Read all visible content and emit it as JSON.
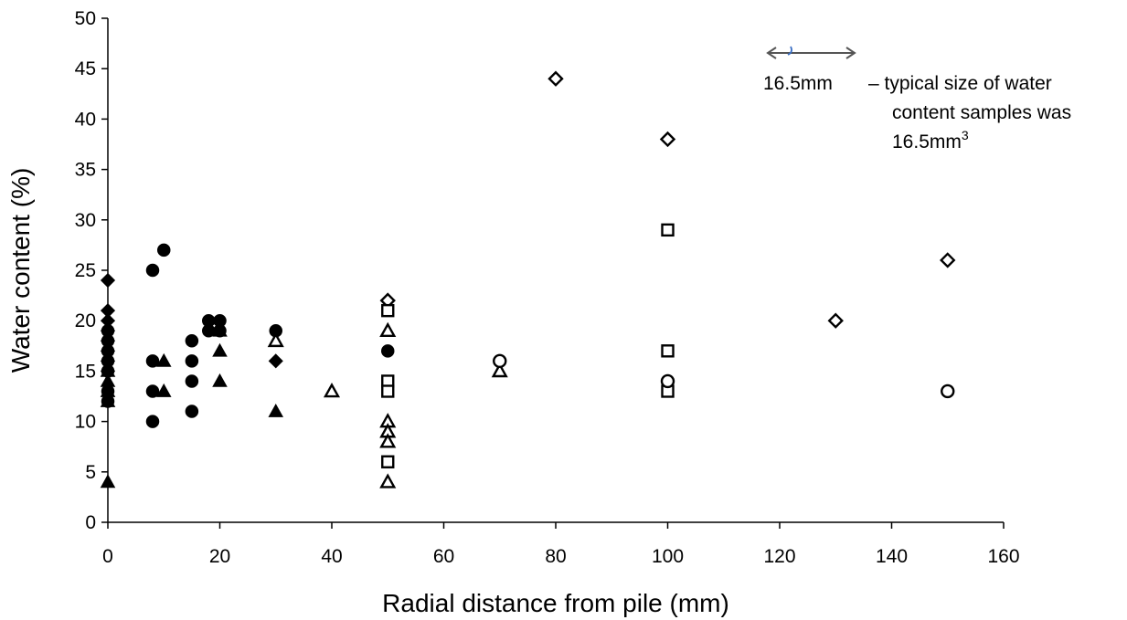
{
  "chart_data": {
    "type": "scatter",
    "xlabel": "Radial distance from pile (mm)",
    "ylabel": "Water content (%)",
    "xlim": [
      0,
      160
    ],
    "ylim": [
      0,
      50
    ],
    "xticks": [
      0,
      20,
      40,
      60,
      80,
      100,
      120,
      140,
      160
    ],
    "yticks": [
      0,
      5,
      10,
      15,
      20,
      25,
      30,
      35,
      40,
      45,
      50
    ],
    "grid": false,
    "legend": "none",
    "series": [
      {
        "marker": "filled-diamond",
        "points": [
          [
            0,
            24
          ],
          [
            0,
            21
          ],
          [
            0,
            20
          ],
          [
            0,
            19
          ],
          [
            0,
            18
          ],
          [
            0,
            17
          ],
          [
            0,
            16
          ],
          [
            0,
            15
          ],
          [
            30,
            16
          ]
        ]
      },
      {
        "marker": "filled-circle",
        "points": [
          [
            0,
            19
          ],
          [
            0,
            18
          ],
          [
            0,
            17
          ],
          [
            0,
            16
          ],
          [
            0,
            15
          ],
          [
            0,
            13
          ],
          [
            0,
            12
          ],
          [
            8,
            25
          ],
          [
            10,
            27
          ],
          [
            8,
            16
          ],
          [
            8,
            13
          ],
          [
            8,
            10
          ],
          [
            15,
            18
          ],
          [
            15,
            16
          ],
          [
            15,
            14
          ],
          [
            15,
            11
          ],
          [
            18,
            20
          ],
          [
            18,
            19
          ],
          [
            20,
            20
          ],
          [
            20,
            19
          ],
          [
            30,
            19
          ],
          [
            50,
            17
          ]
        ]
      },
      {
        "marker": "filled-triangle",
        "points": [
          [
            0,
            15
          ],
          [
            0,
            14
          ],
          [
            0,
            13
          ],
          [
            0,
            12
          ],
          [
            0,
            4
          ],
          [
            10,
            16
          ],
          [
            10,
            13
          ],
          [
            20,
            19
          ],
          [
            20,
            17
          ],
          [
            20,
            14
          ],
          [
            30,
            11
          ]
        ]
      },
      {
        "marker": "open-diamond",
        "points": [
          [
            50,
            22
          ],
          [
            80,
            44
          ],
          [
            100,
            38
          ],
          [
            130,
            20
          ],
          [
            150,
            26
          ]
        ]
      },
      {
        "marker": "open-square",
        "points": [
          [
            50,
            21
          ],
          [
            50,
            14
          ],
          [
            50,
            13
          ],
          [
            50,
            6
          ],
          [
            100,
            29
          ],
          [
            100,
            17
          ],
          [
            100,
            13
          ]
        ]
      },
      {
        "marker": "open-triangle",
        "points": [
          [
            30,
            18
          ],
          [
            40,
            13
          ],
          [
            50,
            19
          ],
          [
            50,
            10
          ],
          [
            50,
            9
          ],
          [
            50,
            8
          ],
          [
            50,
            4
          ],
          [
            70,
            15
          ]
        ]
      },
      {
        "marker": "open-circle",
        "points": [
          [
            70,
            16
          ],
          [
            100,
            14
          ],
          [
            150,
            13
          ]
        ]
      }
    ],
    "annotation": {
      "scale_label": "16.5mm",
      "line1": "– typical size of water",
      "line2": "content samples was",
      "line3_base": "16.5mm",
      "line3_sup": "3"
    }
  }
}
